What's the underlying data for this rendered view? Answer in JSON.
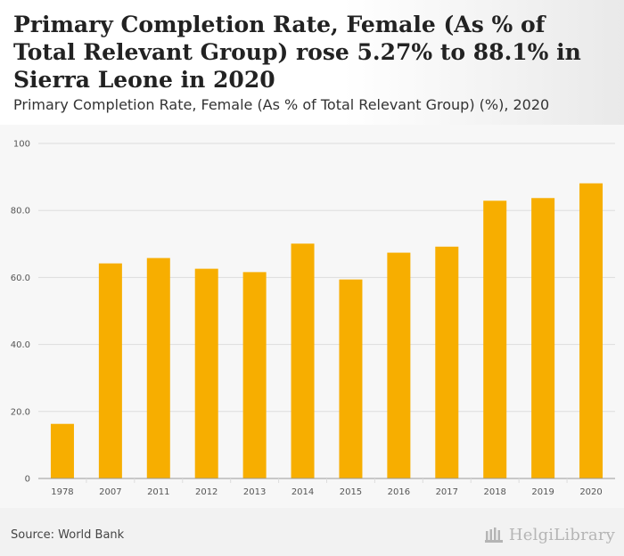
{
  "header": {
    "title": "Primary Completion Rate, Female (As % of Total Relevant Group) rose 5.27% to 88.1% in Sierra Leone in 2020",
    "subtitle": "Primary Completion Rate, Female (As % of Total Relevant Group) (%), 2020"
  },
  "footer": {
    "source": "Source: World Bank",
    "logo_text": "HelgiLibrary"
  },
  "colors": {
    "bar": "#f7ae00",
    "grid": "#dddddd",
    "axis": "#999999"
  },
  "chart_data": {
    "type": "bar",
    "categories": [
      "1978",
      "2007",
      "2011",
      "2012",
      "2013",
      "2014",
      "2015",
      "2016",
      "2017",
      "2018",
      "2019",
      "2020"
    ],
    "values": [
      16.3,
      64.2,
      65.8,
      62.6,
      61.6,
      70.1,
      59.4,
      67.4,
      69.2,
      82.9,
      83.7,
      88.1
    ],
    "ylim": [
      0,
      100
    ],
    "yticks": [
      0,
      20,
      40,
      60,
      80,
      100
    ],
    "ytick_labels": [
      "0",
      "20.0",
      "40.0",
      "60.0",
      "80.0",
      "100"
    ],
    "grid": true,
    "title": "Primary Completion Rate, Female (As % of Total Relevant Group) (%), 2020"
  }
}
